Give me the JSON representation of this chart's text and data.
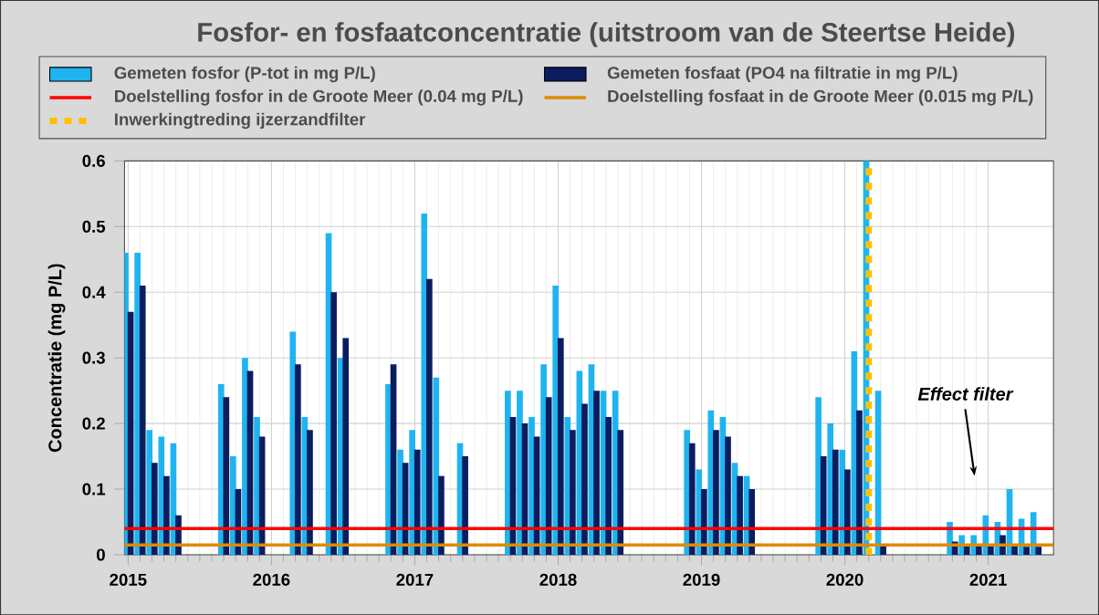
{
  "chart_data": {
    "type": "bar",
    "title": "Fosfor- en fosfaatconcentratie (uitstroom van de Steertse Heide)",
    "ylabel": "Concentratie (mg P/L)",
    "x": [
      "2015-01",
      "2015-02",
      "2015-03",
      "2015-04",
      "2015-05",
      "2015-06",
      "2015-07",
      "2015-08",
      "2015-09",
      "2015-10",
      "2015-11",
      "2015-12",
      "2016-01",
      "2016-02",
      "2016-03",
      "2016-04",
      "2016-05",
      "2016-06",
      "2016-07",
      "2016-08",
      "2016-09",
      "2016-10",
      "2016-11",
      "2016-12",
      "2017-01",
      "2017-02",
      "2017-03",
      "2017-04",
      "2017-05",
      "2017-06",
      "2017-07",
      "2017-08",
      "2017-09",
      "2017-10",
      "2017-11",
      "2017-12",
      "2018-01",
      "2018-02",
      "2018-03",
      "2018-04",
      "2018-05",
      "2018-06",
      "2018-07",
      "2018-08",
      "2018-09",
      "2018-10",
      "2018-11",
      "2018-12",
      "2019-01",
      "2019-02",
      "2019-03",
      "2019-04",
      "2019-05",
      "2019-06",
      "2019-07",
      "2019-08",
      "2019-09",
      "2019-10",
      "2019-11",
      "2019-12",
      "2020-01",
      "2020-02",
      "2020-03",
      "2020-04",
      "2020-05",
      "2020-06",
      "2020-07",
      "2020-08",
      "2020-09",
      "2020-10",
      "2020-11",
      "2020-12",
      "2021-01",
      "2021-02",
      "2021-03",
      "2021-04",
      "2021-05"
    ],
    "series": [
      {
        "name": "Gemeten fosfor (P-tot in mg P/L)",
        "color": "#1fb4f0",
        "values": [
          0.46,
          0.46,
          0.19,
          0.18,
          0.17,
          null,
          null,
          null,
          0.26,
          0.15,
          0.3,
          0.21,
          null,
          null,
          0.34,
          0.21,
          null,
          0.49,
          0.3,
          null,
          null,
          null,
          0.26,
          0.16,
          0.19,
          0.52,
          0.27,
          null,
          0.17,
          null,
          null,
          null,
          0.25,
          0.25,
          0.21,
          0.29,
          0.41,
          0.21,
          0.28,
          0.29,
          0.25,
          0.25,
          null,
          null,
          null,
          null,
          null,
          0.19,
          0.13,
          0.22,
          0.21,
          0.14,
          0.12,
          null,
          null,
          null,
          null,
          null,
          0.24,
          0.2,
          0.16,
          0.31,
          0.6,
          0.25,
          null,
          null,
          null,
          null,
          null,
          0.05,
          0.03,
          0.03,
          0.06,
          0.05,
          0.1,
          0.055,
          0.065
        ]
      },
      {
        "name": "Gemeten fosfaat (PO4 na filtratie in mg P/L)",
        "color": "#0b1d5e",
        "values": [
          0.37,
          0.41,
          0.14,
          0.12,
          0.06,
          null,
          null,
          null,
          0.24,
          0.1,
          0.28,
          0.18,
          null,
          null,
          0.29,
          0.19,
          null,
          0.4,
          0.33,
          null,
          null,
          null,
          0.29,
          0.14,
          0.16,
          0.42,
          0.12,
          null,
          0.15,
          null,
          null,
          null,
          0.21,
          0.2,
          0.18,
          0.24,
          0.33,
          0.19,
          0.23,
          0.25,
          0.21,
          0.19,
          null,
          null,
          null,
          null,
          null,
          0.17,
          0.1,
          0.19,
          0.18,
          0.12,
          0.1,
          null,
          null,
          null,
          null,
          null,
          0.15,
          0.16,
          0.13,
          0.22,
          null,
          0.015,
          null,
          null,
          null,
          null,
          null,
          0.02,
          0.015,
          0.015,
          0.015,
          0.03,
          0.015,
          0.012,
          0.012
        ]
      }
    ],
    "ref_lines": [
      {
        "axis": "y",
        "value": 0.04,
        "label": "Doelstelling fosfor in de Groote Meer (0.04 mg P/L)",
        "color": "#ff0000",
        "line_style": "solid"
      },
      {
        "axis": "y",
        "value": 0.015,
        "label": "Doelstelling fosfaat in de Groote Meer (0.015 mg P/L)",
        "color": "#e08a00",
        "line_style": "solid"
      },
      {
        "axis": "x",
        "value": "2020-03",
        "label": "Inwerkingtreding ijzerzandfilter",
        "color": "#ffc000",
        "line_style": "dashed"
      }
    ],
    "annotations": [
      "Effect filter"
    ],
    "xlim": [
      "2014-12-22",
      "2021-06-15"
    ],
    "xticks": [
      {
        "value": "2015-01",
        "label": "2015"
      },
      {
        "value": "2016-01",
        "label": "2016"
      },
      {
        "value": "2017-01",
        "label": "2017"
      },
      {
        "value": "2018-01",
        "label": "2018"
      },
      {
        "value": "2019-01",
        "label": "2019"
      },
      {
        "value": "2020-01",
        "label": "2020"
      },
      {
        "value": "2021-01",
        "label": "2021"
      }
    ],
    "ylim": [
      0,
      0.6
    ],
    "yticks": [
      0,
      0.1,
      0.2,
      0.3,
      0.4,
      0.5,
      0.6
    ],
    "grid": true,
    "legend": "top"
  }
}
